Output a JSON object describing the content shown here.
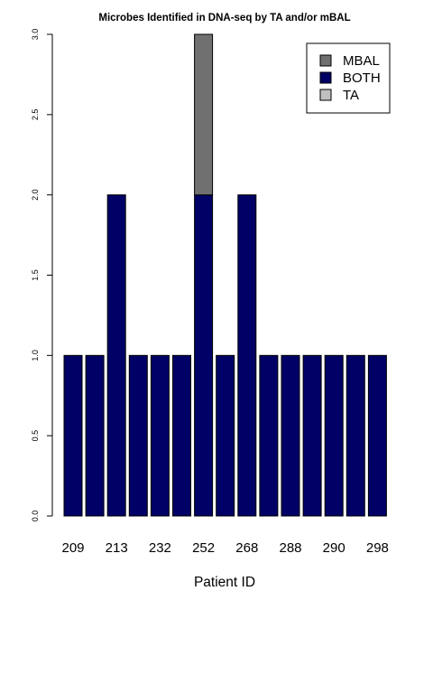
{
  "chart_data": {
    "type": "bar",
    "stacked": true,
    "title": "Microbes Identified in DNA-seq by TA and/or mBAL",
    "xlabel": "Patient ID",
    "ylabel": "",
    "ylim": [
      0,
      3
    ],
    "yticks": [
      "0.0",
      "0.5",
      "1.0",
      "1.5",
      "2.0",
      "2.5",
      "3.0"
    ],
    "grid": false,
    "legend_position": "top-right",
    "categories": [
      "209",
      "",
      "213",
      "",
      "232",
      "",
      "252",
      "",
      "268",
      "",
      "288",
      "",
      "290",
      "",
      "298"
    ],
    "series": [
      {
        "name": "BOTH",
        "color": "#000066",
        "values": [
          1,
          1,
          2,
          1,
          1,
          1,
          2,
          1,
          2,
          1,
          1,
          1,
          1,
          1,
          1
        ]
      },
      {
        "name": "MBAL",
        "color": "#707070",
        "values": [
          0,
          0,
          0,
          0,
          0,
          0,
          1,
          0,
          0,
          0,
          0,
          0,
          0,
          0,
          0
        ]
      },
      {
        "name": "TA",
        "color": "#c0c0c0",
        "values": [
          0,
          0,
          0,
          0,
          0,
          0,
          0,
          0,
          0,
          0,
          0,
          0,
          0,
          0,
          0
        ]
      }
    ],
    "legend_order": [
      "MBAL",
      "BOTH",
      "TA"
    ]
  }
}
